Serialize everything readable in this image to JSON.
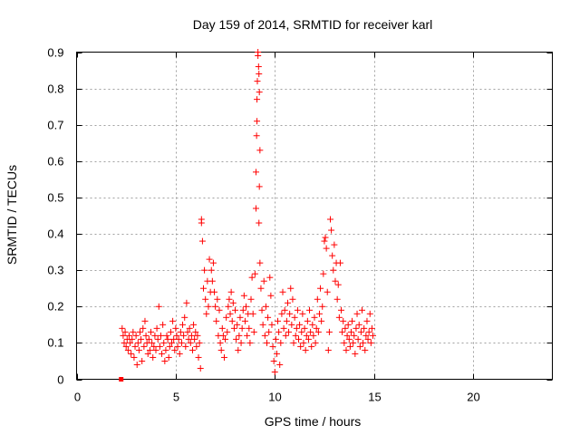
{
  "chart_data": {
    "type": "scatter",
    "title": "Day 159 of 2014, SRMTID for receiver karl",
    "xlabel": "GPS time / hours",
    "ylabel": "SRMTID / TECUs",
    "xlim": [
      0,
      24
    ],
    "ylim": [
      0,
      0.9
    ],
    "xticks": [
      0,
      5,
      10,
      15,
      20
    ],
    "yticks": [
      0,
      0.1,
      0.2,
      0.3,
      0.4,
      0.5,
      0.6,
      0.7,
      0.8,
      0.9
    ],
    "xtick_labels": [
      "0",
      "5",
      "10",
      "15",
      "20"
    ],
    "ytick_labels": [
      "0",
      "0.1",
      "0.2",
      "0.3",
      "0.4",
      "0.5",
      "0.6",
      "0.7",
      "0.8",
      "0.9"
    ],
    "grid": true,
    "marker": "plus",
    "color": "#ff0000",
    "series": [
      {
        "name": "SRMTID",
        "points": [
          [
            2.25,
            0.0
          ],
          [
            2.3,
            0.14
          ],
          [
            2.35,
            0.12
          ],
          [
            2.4,
            0.1
          ],
          [
            2.45,
            0.13
          ],
          [
            2.5,
            0.09
          ],
          [
            2.55,
            0.11
          ],
          [
            2.6,
            0.08
          ],
          [
            2.65,
            0.12
          ],
          [
            2.7,
            0.1
          ],
          [
            2.75,
            0.07
          ],
          [
            2.8,
            0.11
          ],
          [
            2.85,
            0.13
          ],
          [
            2.9,
            0.06
          ],
          [
            2.95,
            0.09
          ],
          [
            3.0,
            0.12
          ],
          [
            3.05,
            0.04
          ],
          [
            3.1,
            0.1
          ],
          [
            3.15,
            0.08
          ],
          [
            3.2,
            0.13
          ],
          [
            3.25,
            0.11
          ],
          [
            3.3,
            0.05
          ],
          [
            3.35,
            0.14
          ],
          [
            3.4,
            0.09
          ],
          [
            3.45,
            0.16
          ],
          [
            3.5,
            0.12
          ],
          [
            3.55,
            0.1
          ],
          [
            3.6,
            0.07
          ],
          [
            3.65,
            0.11
          ],
          [
            3.7,
            0.08
          ],
          [
            3.75,
            0.13
          ],
          [
            3.8,
            0.1
          ],
          [
            3.85,
            0.06
          ],
          [
            3.9,
            0.09
          ],
          [
            3.95,
            0.12
          ],
          [
            4.0,
            0.08
          ],
          [
            4.05,
            0.14
          ],
          [
            4.1,
            0.11
          ],
          [
            4.15,
            0.2
          ],
          [
            4.2,
            0.09
          ],
          [
            4.25,
            0.12
          ],
          [
            4.3,
            0.07
          ],
          [
            4.35,
            0.15
          ],
          [
            4.4,
            0.1
          ],
          [
            4.45,
            0.05
          ],
          [
            4.5,
            0.08
          ],
          [
            4.55,
            0.12
          ],
          [
            4.6,
            0.11
          ],
          [
            4.65,
            0.06
          ],
          [
            4.7,
            0.09
          ],
          [
            4.75,
            0.13
          ],
          [
            4.8,
            0.1
          ],
          [
            4.85,
            0.16
          ],
          [
            4.9,
            0.11
          ],
          [
            4.95,
            0.08
          ],
          [
            5.0,
            0.14
          ],
          [
            5.05,
            0.12
          ],
          [
            5.1,
            0.09
          ],
          [
            5.15,
            0.11
          ],
          [
            5.2,
            0.07
          ],
          [
            5.25,
            0.13
          ],
          [
            5.3,
            0.1
          ],
          [
            5.35,
            0.15
          ],
          [
            5.4,
            0.12
          ],
          [
            5.45,
            0.17
          ],
          [
            5.5,
            0.09
          ],
          [
            5.55,
            0.21
          ],
          [
            5.6,
            0.13
          ],
          [
            5.65,
            0.11
          ],
          [
            5.7,
            0.14
          ],
          [
            5.75,
            0.1
          ],
          [
            5.8,
            0.12
          ],
          [
            5.85,
            0.08
          ],
          [
            5.9,
            0.15
          ],
          [
            5.95,
            0.11
          ],
          [
            6.0,
            0.13
          ],
          [
            6.05,
            0.09
          ],
          [
            6.1,
            0.12
          ],
          [
            6.15,
            0.06
          ],
          [
            6.2,
            0.1
          ],
          [
            6.25,
            0.03
          ],
          [
            6.3,
            0.44
          ],
          [
            6.3,
            0.43
          ],
          [
            6.35,
            0.38
          ],
          [
            6.4,
            0.25
          ],
          [
            6.45,
            0.3
          ],
          [
            6.5,
            0.22
          ],
          [
            6.55,
            0.18
          ],
          [
            6.6,
            0.27
          ],
          [
            6.65,
            0.2
          ],
          [
            6.7,
            0.33
          ],
          [
            6.75,
            0.24
          ],
          [
            6.8,
            0.3
          ],
          [
            6.85,
            0.27
          ],
          [
            6.9,
            0.32
          ],
          [
            6.95,
            0.24
          ],
          [
            7.0,
            0.2
          ],
          [
            7.05,
            0.16
          ],
          [
            7.1,
            0.22
          ],
          [
            7.15,
            0.12
          ],
          [
            7.2,
            0.19
          ],
          [
            7.25,
            0.1
          ],
          [
            7.3,
            0.08
          ],
          [
            7.35,
            0.14
          ],
          [
            7.4,
            0.12
          ],
          [
            7.45,
            0.06
          ],
          [
            7.5,
            0.11
          ],
          [
            7.55,
            0.17
          ],
          [
            7.6,
            0.13
          ],
          [
            7.65,
            0.2
          ],
          [
            7.7,
            0.22
          ],
          [
            7.75,
            0.18
          ],
          [
            7.8,
            0.24
          ],
          [
            7.85,
            0.16
          ],
          [
            7.9,
            0.21
          ],
          [
            7.95,
            0.14
          ],
          [
            8.0,
            0.19
          ],
          [
            8.05,
            0.11
          ],
          [
            8.1,
            0.15
          ],
          [
            8.15,
            0.08
          ],
          [
            8.2,
            0.12
          ],
          [
            8.25,
            0.17
          ],
          [
            8.3,
            0.1
          ],
          [
            8.35,
            0.14
          ],
          [
            8.4,
            0.19
          ],
          [
            8.45,
            0.23
          ],
          [
            8.5,
            0.16
          ],
          [
            8.55,
            0.2
          ],
          [
            8.6,
            0.12
          ],
          [
            8.65,
            0.18
          ],
          [
            8.7,
            0.14
          ],
          [
            8.75,
            0.1
          ],
          [
            8.8,
            0.22
          ],
          [
            8.85,
            0.28
          ],
          [
            8.9,
            0.18
          ],
          [
            8.95,
            0.13
          ],
          [
            9.0,
            0.29
          ],
          [
            9.05,
            0.57
          ],
          [
            9.05,
            0.47
          ],
          [
            9.08,
            0.67
          ],
          [
            9.1,
            0.71
          ],
          [
            9.1,
            0.77
          ],
          [
            9.12,
            0.82
          ],
          [
            9.15,
            0.9
          ],
          [
            9.15,
            0.89
          ],
          [
            9.18,
            0.86
          ],
          [
            9.2,
            0.84
          ],
          [
            9.22,
            0.79
          ],
          [
            9.25,
            0.63
          ],
          [
            9.22,
            0.53
          ],
          [
            9.2,
            0.43
          ],
          [
            9.25,
            0.32
          ],
          [
            9.3,
            0.25
          ],
          [
            9.35,
            0.19
          ],
          [
            9.4,
            0.15
          ],
          [
            9.45,
            0.27
          ],
          [
            9.5,
            0.12
          ],
          [
            9.55,
            0.2
          ],
          [
            9.6,
            0.1
          ],
          [
            9.65,
            0.17
          ],
          [
            9.7,
            0.13
          ],
          [
            9.75,
            0.28
          ],
          [
            9.8,
            0.23
          ],
          [
            9.85,
            0.15
          ],
          [
            9.9,
            0.09
          ],
          [
            9.95,
            0.05
          ],
          [
            10.0,
            0.02
          ],
          [
            10.05,
            0.11
          ],
          [
            10.1,
            0.07
          ],
          [
            10.15,
            0.16
          ],
          [
            10.2,
            0.13
          ],
          [
            10.25,
            0.04
          ],
          [
            10.3,
            0.1
          ],
          [
            10.35,
            0.18
          ],
          [
            10.4,
            0.24
          ],
          [
            10.45,
            0.14
          ],
          [
            10.5,
            0.19
          ],
          [
            10.55,
            0.12
          ],
          [
            10.6,
            0.16
          ],
          [
            10.65,
            0.21
          ],
          [
            10.7,
            0.13
          ],
          [
            10.75,
            0.18
          ],
          [
            10.8,
            0.25
          ],
          [
            10.85,
            0.15
          ],
          [
            10.9,
            0.22
          ],
          [
            10.95,
            0.1
          ],
          [
            11.0,
            0.17
          ],
          [
            11.05,
            0.12
          ],
          [
            11.1,
            0.14
          ],
          [
            11.15,
            0.19
          ],
          [
            11.2,
            0.11
          ],
          [
            11.25,
            0.15
          ],
          [
            11.3,
            0.09
          ],
          [
            11.35,
            0.13
          ],
          [
            11.4,
            0.18
          ],
          [
            11.45,
            0.1
          ],
          [
            11.5,
            0.14
          ],
          [
            11.55,
            0.08
          ],
          [
            11.6,
            0.12
          ],
          [
            11.65,
            0.16
          ],
          [
            11.7,
            0.11
          ],
          [
            11.75,
            0.19
          ],
          [
            11.8,
            0.13
          ],
          [
            11.85,
            0.09
          ],
          [
            11.9,
            0.15
          ],
          [
            11.95,
            0.12
          ],
          [
            12.0,
            0.17
          ],
          [
            12.05,
            0.1
          ],
          [
            12.1,
            0.14
          ],
          [
            12.15,
            0.22
          ],
          [
            12.2,
            0.13
          ],
          [
            12.25,
            0.18
          ],
          [
            12.3,
            0.25
          ],
          [
            12.35,
            0.16
          ],
          [
            12.4,
            0.2
          ],
          [
            12.45,
            0.29
          ],
          [
            12.5,
            0.38
          ],
          [
            12.55,
            0.39
          ],
          [
            12.6,
            0.36
          ],
          [
            12.65,
            0.24
          ],
          [
            12.7,
            0.08
          ],
          [
            12.75,
            0.13
          ],
          [
            12.8,
            0.44
          ],
          [
            12.85,
            0.41
          ],
          [
            12.9,
            0.34
          ],
          [
            12.95,
            0.3
          ],
          [
            13.0,
            0.37
          ],
          [
            13.05,
            0.27
          ],
          [
            13.1,
            0.32
          ],
          [
            13.15,
            0.22
          ],
          [
            13.2,
            0.26
          ],
          [
            13.25,
            0.17
          ],
          [
            13.3,
            0.32
          ],
          [
            13.35,
            0.19
          ],
          [
            13.4,
            0.13
          ],
          [
            13.45,
            0.16
          ],
          [
            13.5,
            0.1
          ],
          [
            13.55,
            0.14
          ],
          [
            13.6,
            0.08
          ],
          [
            13.65,
            0.12
          ],
          [
            13.7,
            0.15
          ],
          [
            13.75,
            0.11
          ],
          [
            13.8,
            0.09
          ],
          [
            13.85,
            0.13
          ],
          [
            13.9,
            0.16
          ],
          [
            13.95,
            0.1
          ],
          [
            14.0,
            0.12
          ],
          [
            14.05,
            0.07
          ],
          [
            14.1,
            0.14
          ],
          [
            14.15,
            0.18
          ],
          [
            14.2,
            0.11
          ],
          [
            14.25,
            0.15
          ],
          [
            14.3,
            0.09
          ],
          [
            14.35,
            0.13
          ],
          [
            14.4,
            0.19
          ],
          [
            14.45,
            0.1
          ],
          [
            14.5,
            0.14
          ],
          [
            14.55,
            0.08
          ],
          [
            14.6,
            0.12
          ],
          [
            14.65,
            0.16
          ],
          [
            14.7,
            0.11
          ],
          [
            14.75,
            0.13
          ],
          [
            14.8,
            0.18
          ],
          [
            14.85,
            0.1
          ],
          [
            14.9,
            0.14
          ],
          [
            14.95,
            0.12
          ]
        ]
      }
    ]
  }
}
